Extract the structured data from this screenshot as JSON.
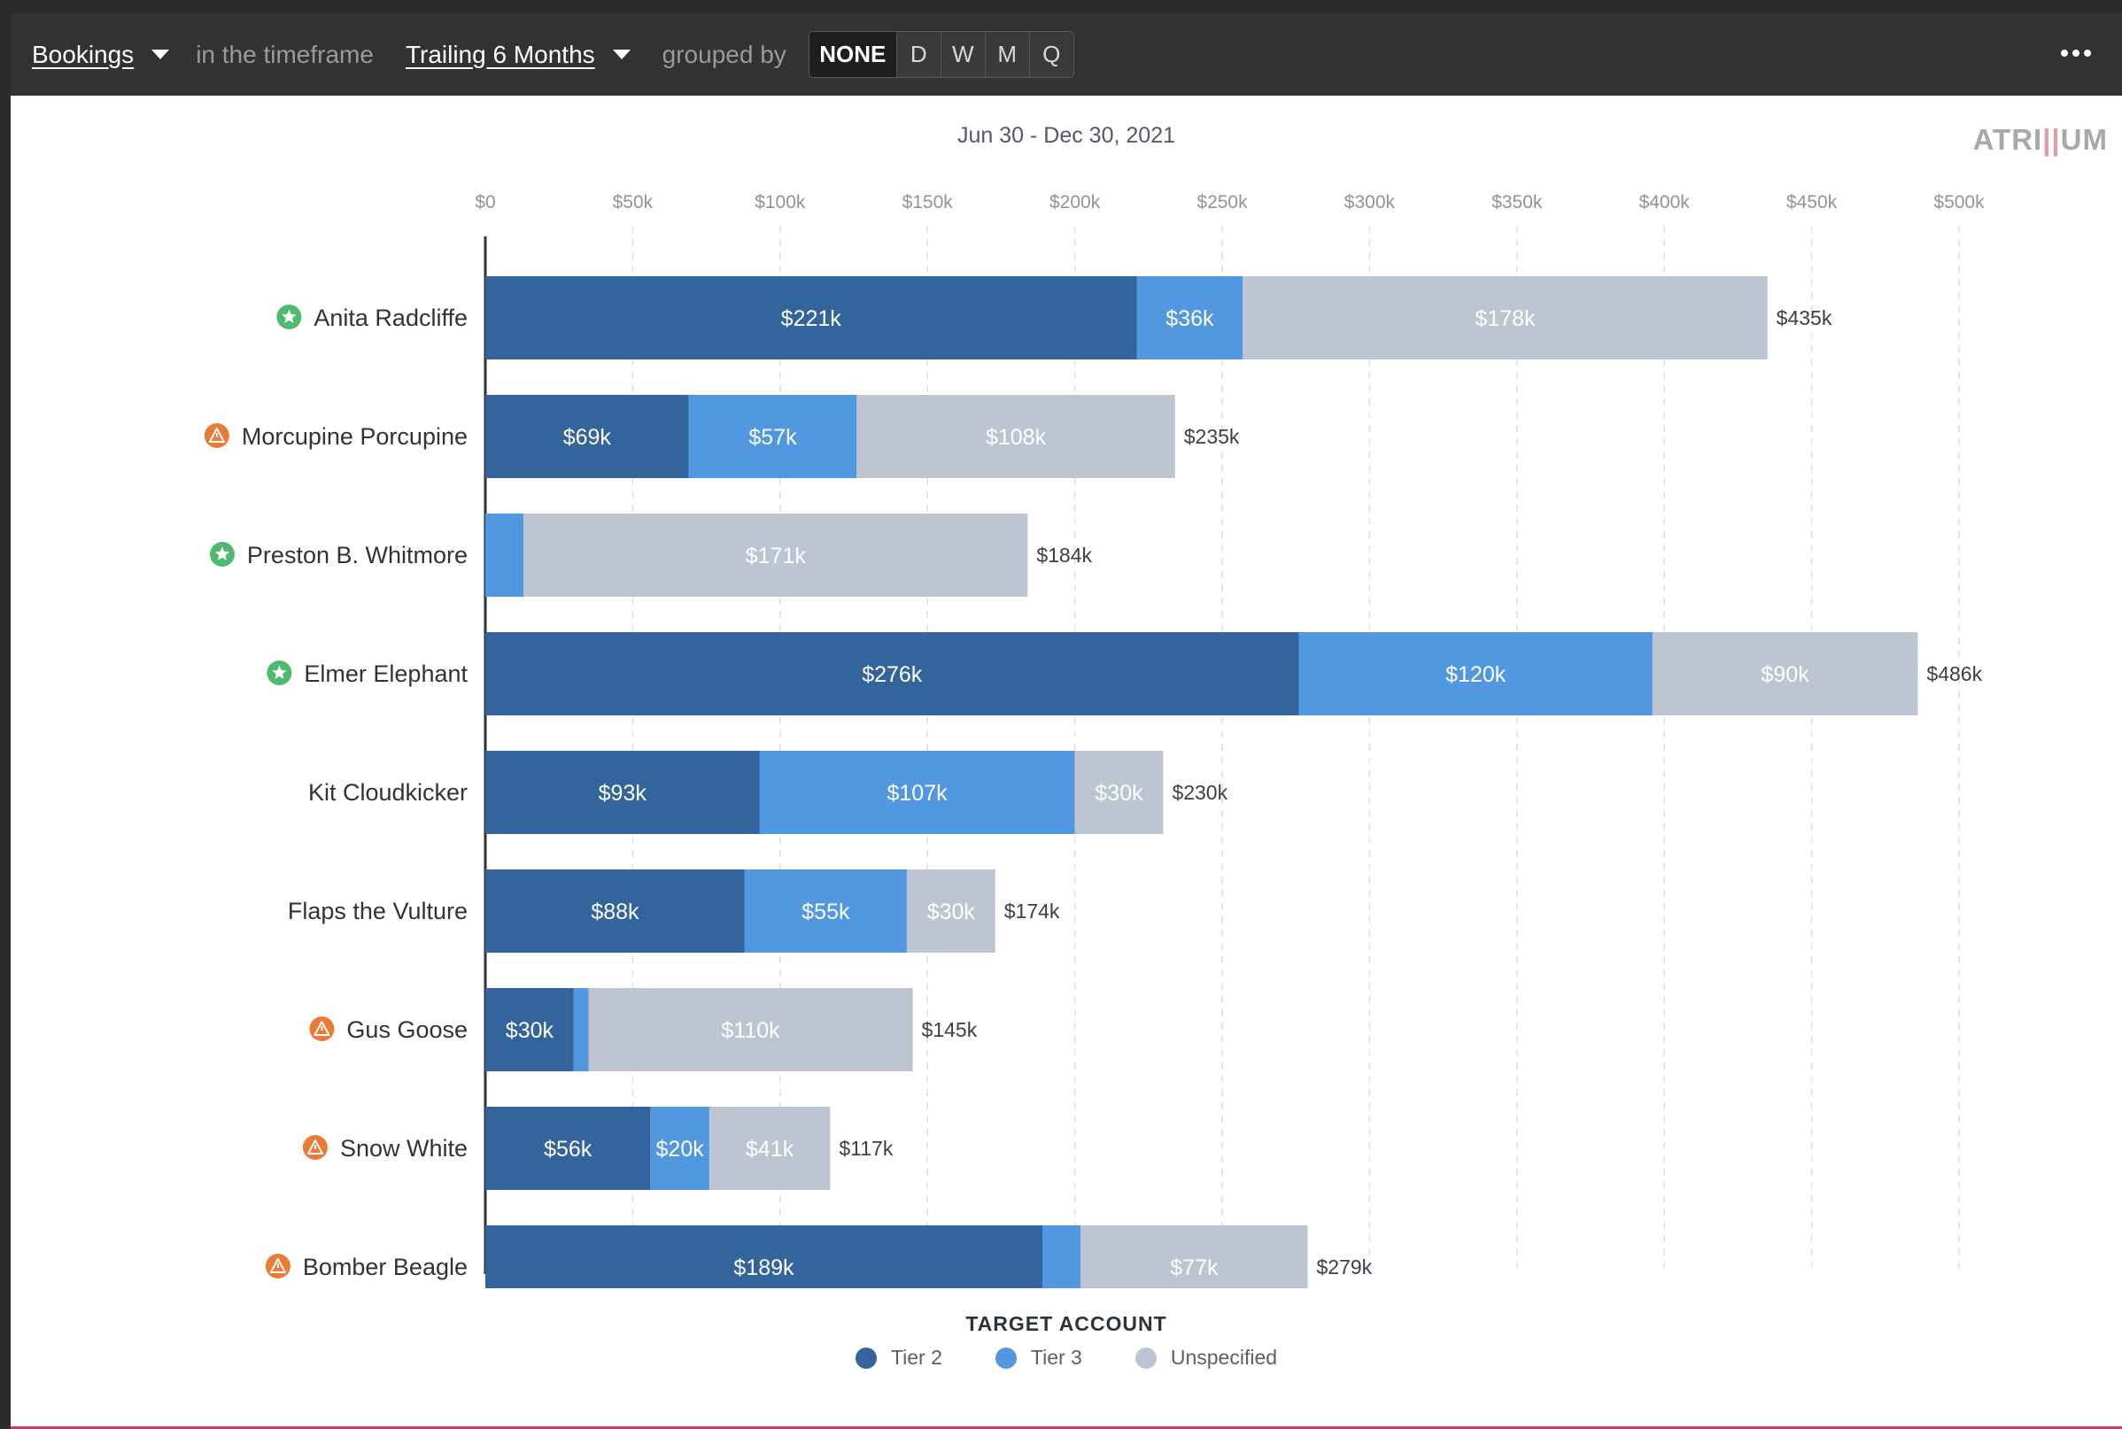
{
  "toolbar": {
    "metric": "Bookings",
    "timeframe_prefix": "in the timeframe",
    "timeframe": "Trailing 6 Months",
    "grouped_prefix": "grouped by",
    "groupings": [
      "NONE",
      "D",
      "W",
      "M",
      "Q"
    ],
    "active_grouping": "NONE",
    "more_icon": "more-horizontal-icon"
  },
  "logo": {
    "left": "ATRI",
    "accent": "||",
    "right": "UM"
  },
  "colors": {
    "tier2": "#33649b",
    "tier3": "#5298e0",
    "unspecified": "#bcc5d1",
    "positive": "#4fba6f",
    "warning": "#e97b34"
  },
  "chart_data": {
    "type": "bar",
    "orientation": "horizontal",
    "stacked": true,
    "title": "Jun 30 - Dec 30, 2021",
    "xlim": [
      0,
      500000
    ],
    "x_ticks": [
      0,
      50000,
      100000,
      150000,
      200000,
      250000,
      300000,
      350000,
      400000,
      450000,
      500000
    ],
    "x_tick_labels": [
      "$0",
      "$50k",
      "$100k",
      "$150k",
      "$200k",
      "$250k",
      "$300k",
      "$350k",
      "$400k",
      "$450k",
      "$500k"
    ],
    "grid": true,
    "legend_title": "TARGET ACCOUNT",
    "legend_position": "bottom-center",
    "categories": [
      "Anita Radcliffe",
      "Morcupine Porcupine",
      "Preston B. Whitmore",
      "Elmer Elephant",
      "Kit Cloudkicker",
      "Flaps the Vulture",
      "Gus Goose",
      "Snow White",
      "Bomber Beagle"
    ],
    "status_icons": [
      "star",
      "warning",
      "star",
      "star",
      "",
      "",
      "warning",
      "warning",
      "warning"
    ],
    "series": [
      {
        "name": "Tier 2",
        "values": [
          221000,
          69000,
          0,
          276000,
          93000,
          88000,
          30000,
          56000,
          189000
        ],
        "labels": [
          "$221k",
          "$69k",
          "",
          "$276k",
          "$93k",
          "$88k",
          "$30k",
          "$56k",
          "$189k"
        ]
      },
      {
        "name": "Tier 3",
        "values": [
          36000,
          57000,
          13000,
          120000,
          107000,
          55000,
          5000,
          20000,
          13000
        ],
        "labels": [
          "$36k",
          "$57k",
          "",
          "$120k",
          "$107k",
          "$55k",
          "",
          "$20k",
          ""
        ]
      },
      {
        "name": "Unspecified",
        "values": [
          178000,
          108000,
          171000,
          90000,
          30000,
          30000,
          110000,
          41000,
          77000
        ],
        "labels": [
          "$178k",
          "$108k",
          "$171k",
          "$90k",
          "$30k",
          "$30k",
          "$110k",
          "$41k",
          "$77k"
        ]
      }
    ],
    "totals": [
      435000,
      235000,
      184000,
      486000,
      230000,
      174000,
      145000,
      117000,
      279000
    ],
    "total_labels": [
      "$435k",
      "$235k",
      "$184k",
      "$486k",
      "$230k",
      "$174k",
      "$145k",
      "$117k",
      "$279k"
    ]
  }
}
